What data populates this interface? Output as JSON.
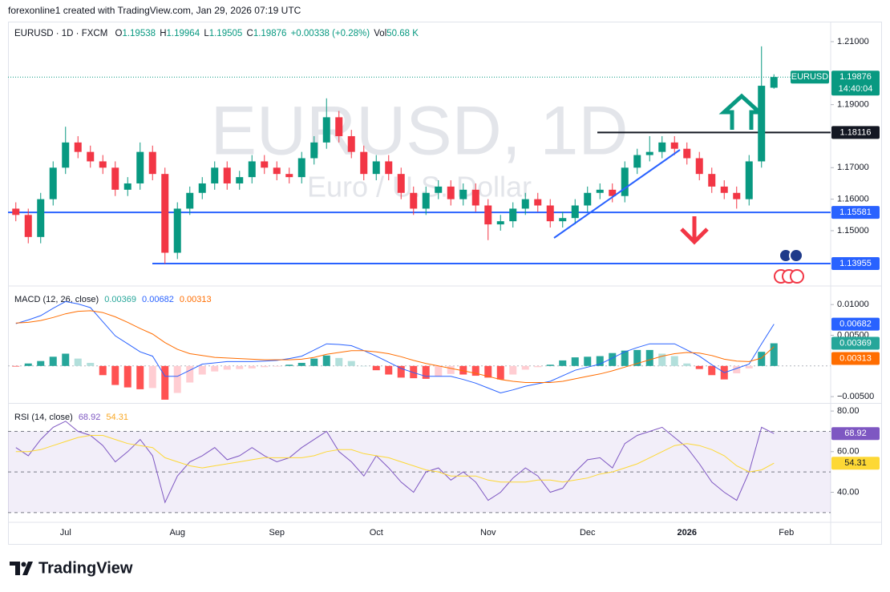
{
  "header": {
    "attribution": "forexonline1 created with TradingView.com, Jan 29, 2026 07:19 UTC"
  },
  "footer": {
    "brand": "TradingView"
  },
  "chart_data": [
    {
      "type": "candlestick",
      "symbol": "EURUSD · 1D · FXCM",
      "ohlc_labels": [
        "O",
        "H",
        "L",
        "C"
      ],
      "change": "+0.00338 (+0.28%)",
      "volume_label": "Vol",
      "volume": "50.68 K",
      "watermark_title": "EURUSD, 1D",
      "watermark_subtitle": "Euro / U.S. Dollar",
      "price_tag": "EURUSD",
      "countdown": "14:40:04",
      "up_color": "#089981",
      "down_color": "#f23645",
      "categories": [
        null,
        null,
        null,
        null,
        "Jul",
        null,
        null,
        null,
        null,
        null,
        null,
        null,
        null,
        "Aug",
        null,
        null,
        null,
        null,
        null,
        null,
        null,
        "Sep",
        null,
        null,
        null,
        null,
        null,
        null,
        null,
        "Oct",
        null,
        null,
        null,
        null,
        null,
        null,
        null,
        null,
        "Nov",
        null,
        null,
        null,
        null,
        null,
        null,
        null,
        "Dec",
        null,
        null,
        null,
        null,
        null,
        null,
        null,
        "2026",
        null,
        null,
        null,
        null,
        null,
        null,
        null,
        "Feb",
        null,
        null,
        null
      ],
      "ohlc": [
        [
          1.157,
          1.159,
          1.153,
          1.155
        ],
        [
          1.155,
          1.157,
          1.146,
          1.148
        ],
        [
          1.148,
          1.162,
          1.146,
          1.16
        ],
        [
          1.16,
          1.172,
          1.158,
          1.17
        ],
        [
          1.17,
          1.183,
          1.168,
          1.178
        ],
        [
          1.178,
          1.18,
          1.173,
          1.175
        ],
        [
          1.175,
          1.177,
          1.17,
          1.172
        ],
        [
          1.172,
          1.174,
          1.168,
          1.17
        ],
        [
          1.17,
          1.172,
          1.161,
          1.163
        ],
        [
          1.163,
          1.167,
          1.161,
          1.165
        ],
        [
          1.165,
          1.178,
          1.163,
          1.175
        ],
        [
          1.175,
          1.177,
          1.166,
          1.168
        ],
        [
          1.168,
          1.17,
          1.1395,
          1.143
        ],
        [
          1.143,
          1.159,
          1.141,
          1.157
        ],
        [
          1.157,
          1.164,
          1.155,
          1.162
        ],
        [
          1.162,
          1.167,
          1.16,
          1.165
        ],
        [
          1.165,
          1.172,
          1.163,
          1.17
        ],
        [
          1.17,
          1.172,
          1.163,
          1.165
        ],
        [
          1.165,
          1.169,
          1.163,
          1.167
        ],
        [
          1.167,
          1.174,
          1.165,
          1.172
        ],
        [
          1.172,
          1.174,
          1.168,
          1.17
        ],
        [
          1.17,
          1.172,
          1.166,
          1.168
        ],
        [
          1.168,
          1.17,
          1.165,
          1.167
        ],
        [
          1.167,
          1.175,
          1.165,
          1.173
        ],
        [
          1.173,
          1.18,
          1.171,
          1.178
        ],
        [
          1.178,
          1.192,
          1.176,
          1.186
        ],
        [
          1.186,
          1.188,
          1.178,
          1.18
        ],
        [
          1.18,
          1.182,
          1.173,
          1.175
        ],
        [
          1.175,
          1.177,
          1.166,
          1.168
        ],
        [
          1.168,
          1.174,
          1.166,
          1.172
        ],
        [
          1.172,
          1.174,
          1.166,
          1.168
        ],
        [
          1.168,
          1.17,
          1.16,
          1.162
        ],
        [
          1.162,
          1.164,
          1.155,
          1.157
        ],
        [
          1.157,
          1.164,
          1.155,
          1.162
        ],
        [
          1.162,
          1.166,
          1.16,
          1.164
        ],
        [
          1.164,
          1.166,
          1.158,
          1.16
        ],
        [
          1.16,
          1.165,
          1.158,
          1.163
        ],
        [
          1.163,
          1.165,
          1.156,
          1.158
        ],
        [
          1.158,
          1.16,
          1.147,
          1.152
        ],
        [
          1.152,
          1.155,
          1.15,
          1.153
        ],
        [
          1.153,
          1.159,
          1.151,
          1.157
        ],
        [
          1.157,
          1.162,
          1.155,
          1.16
        ],
        [
          1.16,
          1.162,
          1.156,
          1.158
        ],
        [
          1.158,
          1.16,
          1.151,
          1.153
        ],
        [
          1.153,
          1.156,
          1.151,
          1.154
        ],
        [
          1.154,
          1.16,
          1.152,
          1.158
        ],
        [
          1.158,
          1.164,
          1.156,
          1.162
        ],
        [
          1.162,
          1.165,
          1.16,
          1.163
        ],
        [
          1.163,
          1.165,
          1.159,
          1.161
        ],
        [
          1.161,
          1.172,
          1.159,
          1.17
        ],
        [
          1.17,
          1.176,
          1.168,
          1.174
        ],
        [
          1.174,
          1.18,
          1.172,
          1.175
        ],
        [
          1.175,
          1.18,
          1.173,
          1.178
        ],
        [
          1.178,
          1.18,
          1.174,
          1.176
        ],
        [
          1.176,
          1.178,
          1.171,
          1.173
        ],
        [
          1.173,
          1.175,
          1.166,
          1.168
        ],
        [
          1.168,
          1.17,
          1.162,
          1.164
        ],
        [
          1.164,
          1.166,
          1.16,
          1.162
        ],
        [
          1.162,
          1.164,
          1.157,
          1.16
        ],
        [
          1.16,
          1.174,
          1.158,
          1.172
        ],
        [
          1.172,
          1.2085,
          1.17,
          1.196
        ],
        [
          1.19538,
          1.19964,
          1.19505,
          1.19876
        ],
        null,
        null,
        null,
        null
      ],
      "ylim": [
        1.1327,
        1.2161
      ],
      "yticks": [
        {
          "value": 1.21,
          "label": "1.21000"
        },
        {
          "value": 1.19,
          "label": "1.19000"
        },
        {
          "value": 1.17,
          "label": "1.17000"
        },
        {
          "value": 1.16,
          "label": "1.16000"
        },
        {
          "value": 1.15,
          "label": "1.15000"
        }
      ],
      "levels": [
        {
          "value": 1.18116,
          "color": "#131722"
        },
        {
          "value": 1.15581,
          "color": "#2962ff"
        },
        {
          "value": 1.13955,
          "color": "#2962ff"
        }
      ],
      "grid": false
    },
    {
      "type": "macd",
      "title": "MACD (12, 26, close)",
      "ylim": [
        -0.0059,
        0.0129
      ],
      "yticks": [
        {
          "value": 0.01,
          "label": "0.01000"
        },
        {
          "value": 0.005,
          "label": "0.00500"
        },
        {
          "value": -0.005,
          "label": "−0.00500"
        }
      ],
      "series": [
        {
          "style": "histogram",
          "color": "#26a69a",
          "colors": [
            "#26a69a",
            "#b2dfdb",
            "#ff5252",
            "#ffcdd2"
          ],
          "values": [
            -0.0001,
            0.0004,
            0.0008,
            0.0015,
            0.002,
            0.0012,
            0.0005,
            -0.0015,
            -0.0031,
            -0.0035,
            -0.0038,
            -0.0036,
            -0.0055,
            -0.0044,
            -0.0027,
            -0.0014,
            -0.0009,
            -0.0006,
            -0.0005,
            -0.0004,
            -0.0002,
            -0.0001,
            0.0002,
            0.0005,
            0.0012,
            0.0017,
            0.0013,
            0.0008,
            0.0,
            -0.0007,
            -0.0014,
            -0.0019,
            -0.002,
            -0.0021,
            -0.0017,
            -0.0013,
            -0.0014,
            -0.0016,
            -0.0019,
            -0.0022,
            -0.0014,
            -0.0006,
            -0.0002,
            0.0002,
            0.0009,
            0.0014,
            0.0015,
            0.0016,
            0.0021,
            0.0025,
            0.0026,
            0.0026,
            0.002,
            0.0016,
            0.0004,
            -0.0005,
            -0.0015,
            -0.0022,
            -0.0012,
            -0.0004,
            0.0023,
            0.00369,
            null,
            null,
            null,
            null
          ]
        },
        {
          "style": "line",
          "color": "#2962ff",
          "values": [
            0.0069,
            0.0075,
            0.0082,
            0.0094,
            0.0105,
            0.0101,
            0.0095,
            0.0072,
            0.0049,
            0.0036,
            0.0023,
            0.0016,
            -0.0017,
            -0.0017,
            -0.0007,
            0.0003,
            0.0005,
            0.0007,
            0.0007,
            0.0007,
            0.0008,
            0.0009,
            0.0012,
            0.0016,
            0.0026,
            0.0036,
            0.0035,
            0.0033,
            0.0025,
            0.0016,
            0.0006,
            -0.0004,
            -0.0011,
            -0.0017,
            -0.0017,
            -0.0017,
            -0.0022,
            -0.0028,
            -0.0036,
            -0.0044,
            -0.0039,
            -0.0033,
            -0.0029,
            -0.0025,
            -0.0016,
            -0.0007,
            -0.0002,
            0.0003,
            0.0013,
            0.0023,
            0.003,
            0.0036,
            0.0036,
            0.0036,
            0.0026,
            0.0016,
            0.0002,
            -0.0011,
            -0.0004,
            0.0003,
            0.0036,
            0.00682,
            null,
            null,
            null,
            null
          ]
        },
        {
          "style": "line",
          "color": "#ff6d00",
          "values": [
            0.007,
            0.0071,
            0.0074,
            0.0079,
            0.0085,
            0.0089,
            0.009,
            0.0087,
            0.008,
            0.0071,
            0.0061,
            0.0052,
            0.0038,
            0.0027,
            0.002,
            0.0017,
            0.0014,
            0.0013,
            0.0012,
            0.0011,
            0.001,
            0.001,
            0.001,
            0.0011,
            0.0014,
            0.0019,
            0.0022,
            0.0025,
            0.0025,
            0.0023,
            0.002,
            0.0015,
            0.0009,
            0.0004,
            0.0,
            -0.0004,
            -0.0008,
            -0.0012,
            -0.0017,
            -0.0022,
            -0.0025,
            -0.0027,
            -0.0027,
            -0.0027,
            -0.0025,
            -0.0021,
            -0.0017,
            -0.0013,
            -0.0008,
            -0.0002,
            0.0004,
            0.001,
            0.0016,
            0.002,
            0.0022,
            0.0021,
            0.0017,
            0.0011,
            0.0008,
            0.0007,
            0.0013,
            0.00313,
            null,
            null,
            null,
            null
          ]
        }
      ]
    },
    {
      "type": "rsi",
      "title": "RSI (14, close)",
      "ylim": [
        25.2,
        83.2
      ],
      "yticks": [
        {
          "value": 80,
          "label": "80.00"
        },
        {
          "value": 60,
          "label": "60.00"
        },
        {
          "value": 40,
          "label": "40.00"
        }
      ],
      "levels": [
        70,
        50,
        30
      ],
      "band_color": "#7e57c2",
      "series": [
        {
          "style": "line",
          "color": "#7e57c2",
          "values": [
            62,
            58,
            66,
            72,
            75,
            70,
            68,
            63,
            55,
            60,
            66,
            58,
            35,
            48,
            55,
            58,
            62,
            56,
            58,
            62,
            58,
            55,
            57,
            62,
            66,
            70,
            60,
            55,
            48,
            58,
            52,
            45,
            40,
            50,
            52,
            46,
            50,
            45,
            36,
            40,
            47,
            52,
            48,
            40,
            42,
            50,
            56,
            57,
            52,
            64,
            68,
            70,
            72,
            67,
            62,
            54,
            45,
            40,
            36,
            50,
            72,
            68.92,
            null,
            null,
            null,
            null
          ]
        },
        {
          "style": "line",
          "color": "#fdd835",
          "values": [
            60,
            60,
            61,
            63,
            65,
            67,
            68,
            68,
            66,
            64,
            63,
            62,
            57,
            55,
            53,
            52,
            53,
            54,
            55,
            56,
            57,
            57,
            57,
            57,
            58,
            60,
            61,
            61,
            59,
            58,
            57,
            55,
            53,
            51,
            50,
            48,
            48,
            48,
            46,
            45,
            45,
            45,
            46,
            46,
            45,
            46,
            47,
            49,
            50,
            52,
            54,
            57,
            60,
            63,
            64,
            63,
            61,
            58,
            53,
            50,
            51,
            54.31,
            null,
            null,
            null,
            null
          ]
        }
      ]
    }
  ]
}
